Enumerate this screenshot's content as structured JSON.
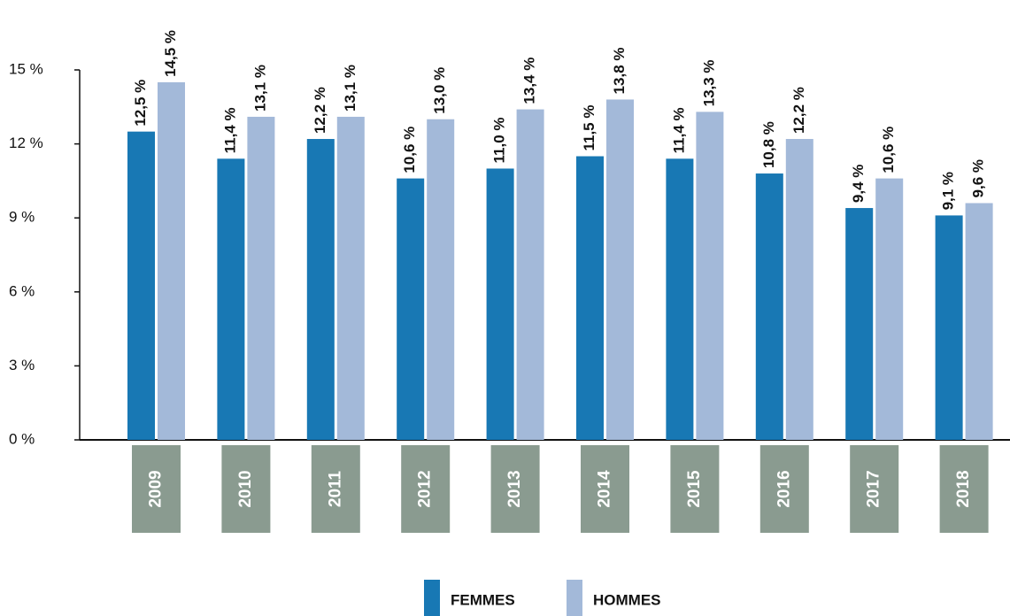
{
  "chart_data": {
    "type": "bar",
    "categories": [
      "2009",
      "2010",
      "2011",
      "2012",
      "2013",
      "2014",
      "2015",
      "2016",
      "2017",
      "2018"
    ],
    "series": [
      {
        "name": "FEMMES",
        "color": "#1878b4",
        "values": [
          12.5,
          11.4,
          12.2,
          10.6,
          11.0,
          11.5,
          11.4,
          10.8,
          9.4,
          9.1
        ],
        "value_labels": [
          "12,5 %",
          "11,4 %",
          "12,2 %",
          "10,6 %",
          "11,0 %",
          "11,5 %",
          "11,4 %",
          "10,8 %",
          "9,4 %",
          "9,1 %"
        ]
      },
      {
        "name": "HOMMES",
        "color": "#a3b9d9",
        "values": [
          14.5,
          13.1,
          13.1,
          13.0,
          13.4,
          13.8,
          13.3,
          12.2,
          10.6,
          9.6
        ],
        "value_labels": [
          "14,5 %",
          "13,1 %",
          "13,1 %",
          "13,0 %",
          "13,4 %",
          "13,8 %",
          "13,3 %",
          "12,2 %",
          "10,6 %",
          "9,6 %"
        ]
      }
    ],
    "ylim": [
      0,
      15
    ],
    "yticks": [
      {
        "value": 0,
        "label": "0 %"
      },
      {
        "value": 3,
        "label": "3 %"
      },
      {
        "value": 6,
        "label": "6 %"
      },
      {
        "value": 9,
        "label": "9 %"
      },
      {
        "value": 12,
        "label": "12 %"
      },
      {
        "value": 15,
        "label": "15 %"
      }
    ],
    "grid": false
  }
}
